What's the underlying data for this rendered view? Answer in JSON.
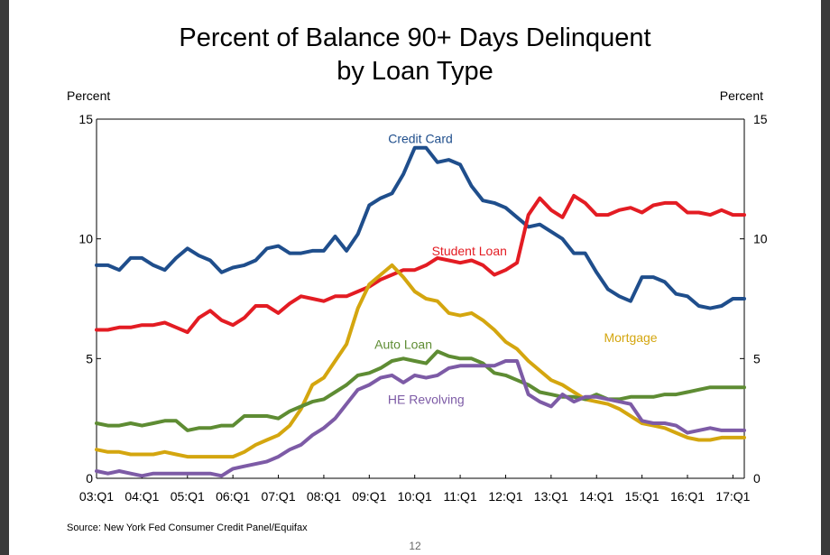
{
  "slide": {
    "title_line1": "Percent of Balance 90+ Days Delinquent",
    "title_line2": "by Loan Type",
    "left_axis_unit": "Percent",
    "right_axis_unit": "Percent",
    "source": "Source: New York Fed Consumer Credit Panel/Equifax",
    "page_number": "12"
  },
  "chart_data": {
    "type": "line",
    "title": "Percent of Balance 90+ Days Delinquent by Loan Type",
    "ylabel": "Percent",
    "y2label": "Percent",
    "ylim": [
      0,
      15
    ],
    "yticks": [
      0,
      5,
      10,
      15
    ],
    "x_start": "2003:Q1",
    "x_end": "2017:Q2",
    "x_tick_labels": [
      "03:Q1",
      "04:Q1",
      "05:Q1",
      "06:Q1",
      "07:Q1",
      "08:Q1",
      "09:Q1",
      "10:Q1",
      "11:Q1",
      "12:Q1",
      "13:Q1",
      "14:Q1",
      "15:Q1",
      "16:Q1",
      "17:Q1"
    ],
    "grid": false,
    "legend": "direct labels on lines",
    "x": [
      "03:Q1",
      "03:Q2",
      "03:Q3",
      "03:Q4",
      "04:Q1",
      "04:Q2",
      "04:Q3",
      "04:Q4",
      "05:Q1",
      "05:Q2",
      "05:Q3",
      "05:Q4",
      "06:Q1",
      "06:Q2",
      "06:Q3",
      "06:Q4",
      "07:Q1",
      "07:Q2",
      "07:Q3",
      "07:Q4",
      "08:Q1",
      "08:Q2",
      "08:Q3",
      "08:Q4",
      "09:Q1",
      "09:Q2",
      "09:Q3",
      "09:Q4",
      "10:Q1",
      "10:Q2",
      "10:Q3",
      "10:Q4",
      "11:Q1",
      "11:Q2",
      "11:Q3",
      "11:Q4",
      "12:Q1",
      "12:Q2",
      "12:Q3",
      "12:Q4",
      "13:Q1",
      "13:Q2",
      "13:Q3",
      "13:Q4",
      "14:Q1",
      "14:Q2",
      "14:Q3",
      "14:Q4",
      "15:Q1",
      "15:Q2",
      "15:Q3",
      "15:Q4",
      "16:Q1",
      "16:Q2",
      "16:Q3",
      "16:Q4",
      "17:Q1",
      "17:Q2"
    ],
    "series": [
      {
        "name": "Credit Card",
        "color": "#1f4e8c",
        "values": [
          8.9,
          8.9,
          8.7,
          9.2,
          9.2,
          8.9,
          8.7,
          9.2,
          9.6,
          9.3,
          9.1,
          8.6,
          8.8,
          8.9,
          9.1,
          9.6,
          9.7,
          9.4,
          9.4,
          9.5,
          9.5,
          10.1,
          9.5,
          10.2,
          11.4,
          11.7,
          11.9,
          12.7,
          13.8,
          13.8,
          13.2,
          13.3,
          13.1,
          12.2,
          11.6,
          11.5,
          11.3,
          10.9,
          10.5,
          10.6,
          10.3,
          10.0,
          9.4,
          9.4,
          8.6,
          7.9,
          7.6,
          7.4,
          8.4,
          8.4,
          8.2,
          7.7,
          7.6,
          7.2,
          7.1,
          7.2,
          7.5,
          7.5
        ]
      },
      {
        "name": "Student Loan",
        "color": "#e31c23",
        "values": [
          6.2,
          6.2,
          6.3,
          6.3,
          6.4,
          6.4,
          6.5,
          6.3,
          6.1,
          6.7,
          7.0,
          6.6,
          6.4,
          6.7,
          7.2,
          7.2,
          6.9,
          7.3,
          7.6,
          7.5,
          7.4,
          7.6,
          7.6,
          7.8,
          8.0,
          8.3,
          8.5,
          8.7,
          8.7,
          8.9,
          9.2,
          9.1,
          9.0,
          9.1,
          8.9,
          8.5,
          8.7,
          9.0,
          11.0,
          11.7,
          11.2,
          10.9,
          11.8,
          11.5,
          11.0,
          11.0,
          11.2,
          11.3,
          11.1,
          11.4,
          11.5,
          11.5,
          11.1,
          11.1,
          11.0,
          11.2,
          11.0,
          11.0
        ]
      },
      {
        "name": "Mortgage",
        "color": "#d4a60f",
        "values": [
          1.2,
          1.1,
          1.1,
          1.0,
          1.0,
          1.0,
          1.1,
          1.0,
          0.9,
          0.9,
          0.9,
          0.9,
          0.9,
          1.1,
          1.4,
          1.6,
          1.8,
          2.2,
          2.9,
          3.9,
          4.2,
          4.9,
          5.6,
          7.1,
          8.1,
          8.5,
          8.9,
          8.4,
          7.8,
          7.5,
          7.4,
          6.9,
          6.8,
          6.9,
          6.6,
          6.2,
          5.7,
          5.4,
          4.9,
          4.5,
          4.1,
          3.9,
          3.6,
          3.3,
          3.2,
          3.1,
          2.9,
          2.6,
          2.3,
          2.2,
          2.1,
          1.9,
          1.7,
          1.6,
          1.6,
          1.7,
          1.7,
          1.7
        ]
      },
      {
        "name": "Auto Loan",
        "color": "#5e8c33",
        "values": [
          2.3,
          2.2,
          2.2,
          2.3,
          2.2,
          2.3,
          2.4,
          2.4,
          2.0,
          2.1,
          2.1,
          2.2,
          2.2,
          2.6,
          2.6,
          2.6,
          2.5,
          2.8,
          3.0,
          3.2,
          3.3,
          3.6,
          3.9,
          4.3,
          4.4,
          4.6,
          4.9,
          5.0,
          4.9,
          4.8,
          5.3,
          5.1,
          5.0,
          5.0,
          4.8,
          4.4,
          4.3,
          4.1,
          3.9,
          3.6,
          3.5,
          3.4,
          3.4,
          3.3,
          3.5,
          3.3,
          3.3,
          3.4,
          3.4,
          3.4,
          3.5,
          3.5,
          3.6,
          3.7,
          3.8,
          3.8,
          3.8,
          3.8
        ]
      },
      {
        "name": "HE Revolving",
        "color": "#7d5ba6",
        "values": [
          0.3,
          0.2,
          0.3,
          0.2,
          0.1,
          0.2,
          0.2,
          0.2,
          0.2,
          0.2,
          0.2,
          0.1,
          0.4,
          0.5,
          0.6,
          0.7,
          0.9,
          1.2,
          1.4,
          1.8,
          2.1,
          2.5,
          3.1,
          3.7,
          3.9,
          4.2,
          4.3,
          4.0,
          4.3,
          4.2,
          4.3,
          4.6,
          4.7,
          4.7,
          4.7,
          4.7,
          4.9,
          4.9,
          3.5,
          3.2,
          3.0,
          3.5,
          3.2,
          3.4,
          3.4,
          3.3,
          3.2,
          3.1,
          2.4,
          2.3,
          2.3,
          2.2,
          1.9,
          2.0,
          2.1,
          2.0,
          2.0,
          2.0
        ]
      }
    ],
    "annotations": [
      {
        "text": "Credit Card",
        "series": "Credit Card"
      },
      {
        "text": "Student Loan",
        "series": "Student Loan"
      },
      {
        "text": "Mortgage",
        "series": "Mortgage"
      },
      {
        "text": "Auto Loan",
        "series": "Auto Loan"
      },
      {
        "text": "HE Revolving",
        "series": "HE Revolving"
      }
    ]
  }
}
